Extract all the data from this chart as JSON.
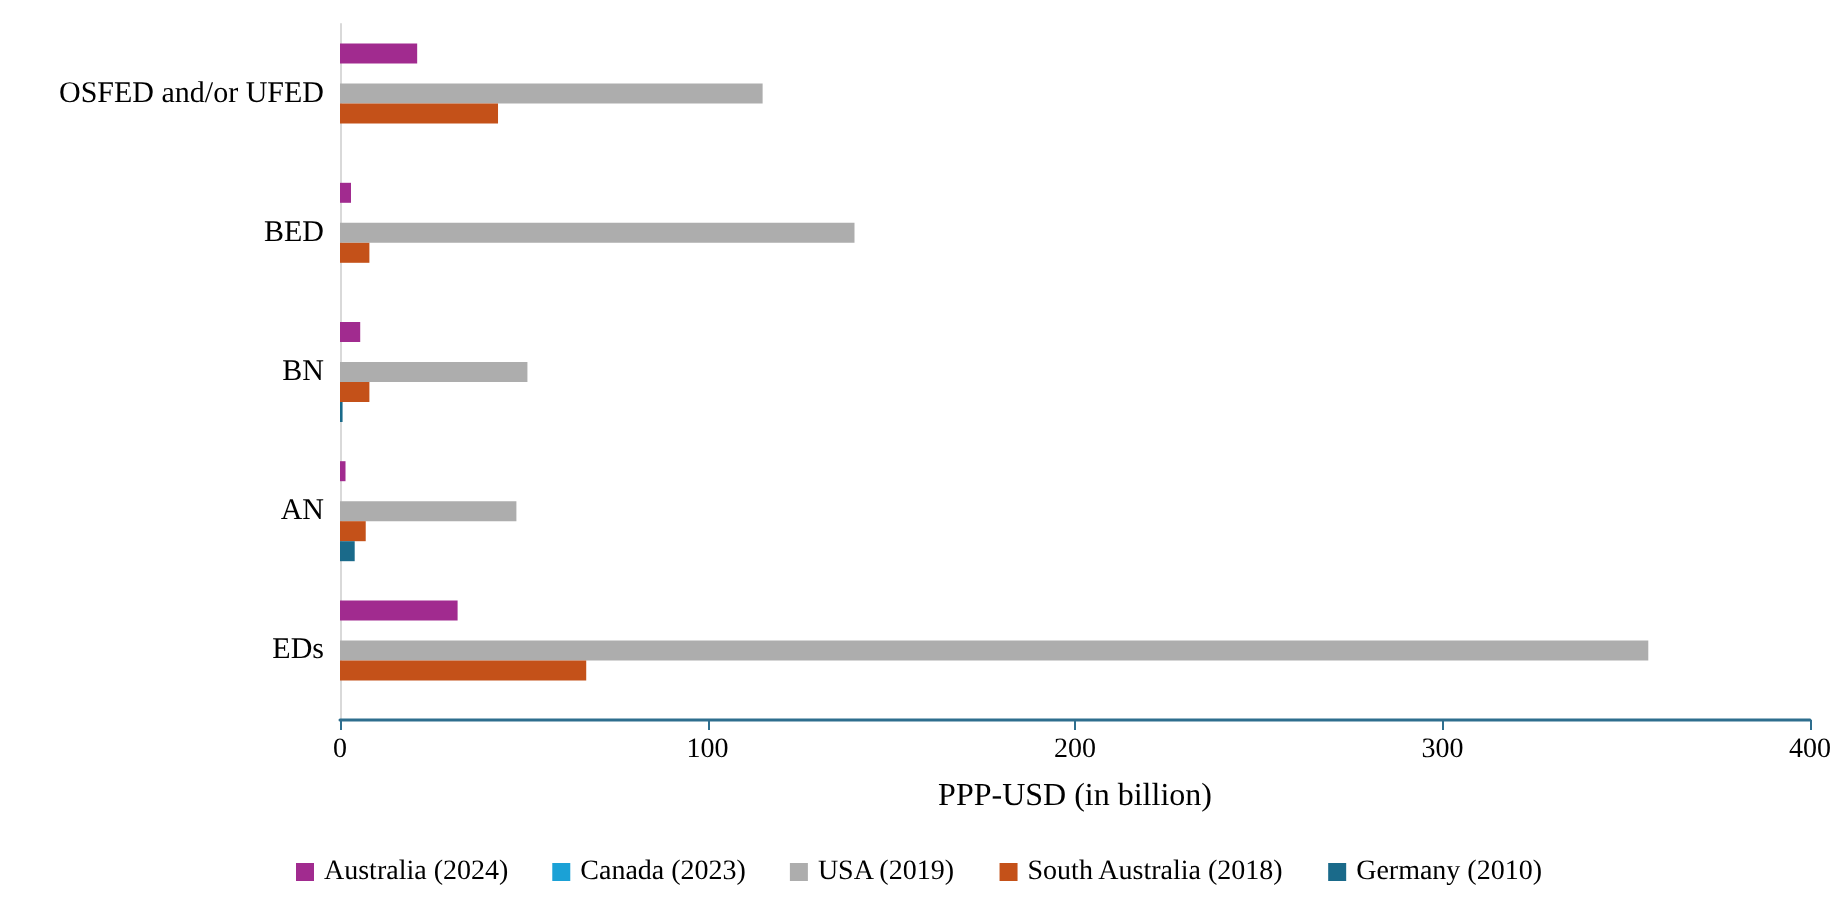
{
  "chart_data": {
    "type": "bar",
    "orientation": "horizontal",
    "xlabel": "PPP-USD (in billion)",
    "categories": [
      "OSFED and/or UFED",
      "BED",
      "BN",
      "AN",
      "EDs"
    ],
    "series": [
      {
        "name": "Australia (2024)",
        "color": "#a12b8f",
        "values": [
          21,
          3,
          5.5,
          1.5,
          32
        ]
      },
      {
        "name": "Canada (2023)",
        "color": "#1ba1d6",
        "values": [
          null,
          null,
          null,
          null,
          null
        ]
      },
      {
        "name": "USA (2019)",
        "color": "#adadad",
        "values": [
          115,
          140,
          51,
          48,
          356
        ]
      },
      {
        "name": "South Australia (2018)",
        "color": "#c45119",
        "values": [
          43,
          8,
          8,
          7,
          67
        ]
      },
      {
        "name": "Germany (2010)",
        "color": "#1a6a8a",
        "values": [
          null,
          null,
          0.7,
          4,
          null
        ]
      }
    ],
    "xlim": [
      0,
      400
    ],
    "xticks": [
      0,
      100,
      200,
      300,
      400
    ],
    "grid": false,
    "legend": "bottom"
  }
}
